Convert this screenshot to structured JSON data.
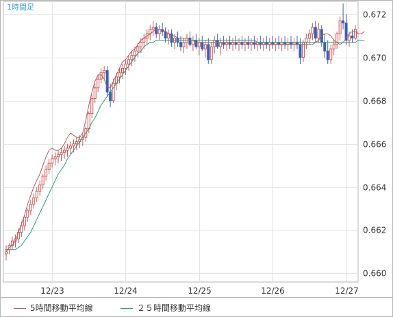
{
  "chart_data": {
    "type": "candlestick",
    "title": "1時間足",
    "xlabel": "",
    "ylabel": "",
    "ylim": [
      0.6596,
      0.6726
    ],
    "y_ticks": [
      "0.660",
      "0.662",
      "0.664",
      "0.666",
      "0.668",
      "0.670",
      "0.672"
    ],
    "x_ticks": [
      "12/23",
      "12/24",
      "12/25",
      "12/26",
      "12/27"
    ],
    "x_tick_index": [
      15,
      39,
      63,
      87,
      111
    ],
    "grid": true,
    "legend_placement": "bottom",
    "colors": {
      "up": "#cc5555",
      "down": "#3a5fb5",
      "ma5": "#b55a5a",
      "ma25": "#2a9a7a",
      "grid": "#e3e3e3",
      "frame": "#b5b5b5",
      "title": "#3aa0d8",
      "tick_text": "#333333"
    },
    "series": [
      {
        "name": "5時間移動平均線",
        "values": [
          0.661,
          0.6612,
          0.6613,
          0.6615,
          0.6619,
          0.6623,
          0.6627,
          0.6632,
          0.6636,
          0.664,
          0.6643,
          0.6646,
          0.665,
          0.6654,
          0.6657,
          0.6658,
          0.6657,
          0.6657,
          0.6658,
          0.666,
          0.6663,
          0.6665,
          0.6664,
          0.6663,
          0.6663,
          0.6665,
          0.6671,
          0.6678,
          0.6684,
          0.6689,
          0.6692,
          0.6692,
          0.669,
          0.6686,
          0.6686,
          0.6689,
          0.6692,
          0.6695,
          0.6698,
          0.6699,
          0.6701,
          0.6703,
          0.6704,
          0.6706,
          0.6708,
          0.6709,
          0.671,
          0.6711,
          0.6712,
          0.6713,
          0.6713,
          0.6713,
          0.6712,
          0.6711,
          0.671,
          0.671,
          0.6709,
          0.6709,
          0.6709,
          0.6709,
          0.6708,
          0.6708,
          0.6707,
          0.6707,
          0.6707,
          0.6707,
          0.6707,
          0.6707,
          0.6707,
          0.6707,
          0.6707,
          0.6707,
          0.6707,
          0.6707,
          0.6707,
          0.6707,
          0.6707,
          0.6707,
          0.6707,
          0.6707,
          0.6707,
          0.6707,
          0.6706,
          0.6706,
          0.6706,
          0.6706,
          0.6706,
          0.6706,
          0.6706,
          0.6706,
          0.6706,
          0.6706,
          0.6706,
          0.6706,
          0.6706,
          0.6706,
          0.6706,
          0.6706,
          0.6706,
          0.6706,
          0.6706,
          0.6707,
          0.6708,
          0.671,
          0.6711,
          0.6711,
          0.671,
          0.6708,
          0.6707,
          0.6706,
          0.6707,
          0.6709,
          0.6711,
          0.6712,
          0.6712,
          0.6711,
          0.6711,
          0.6712
        ]
      },
      {
        "name": "２５時間移動平均線",
        "values": [
          0.6611,
          0.6611,
          0.6611,
          0.6611,
          0.6612,
          0.6613,
          0.6615,
          0.6617,
          0.6619,
          0.6622,
          0.6625,
          0.6628,
          0.6631,
          0.6634,
          0.6637,
          0.664,
          0.6643,
          0.6646,
          0.6648,
          0.665,
          0.6653,
          0.6655,
          0.6657,
          0.6659,
          0.6661,
          0.6663,
          0.6665,
          0.6667,
          0.667,
          0.6672,
          0.6675,
          0.6678,
          0.668,
          0.6682,
          0.6684,
          0.6686,
          0.6688,
          0.669,
          0.6692,
          0.6694,
          0.6696,
          0.6698,
          0.67,
          0.6702,
          0.6703,
          0.6705,
          0.6706,
          0.6707,
          0.6707,
          0.6708,
          0.6708,
          0.6708,
          0.6708,
          0.6708,
          0.6708,
          0.6708,
          0.6708,
          0.6708,
          0.6708,
          0.6708,
          0.6708,
          0.6708,
          0.6708,
          0.6708,
          0.6708,
          0.6708,
          0.6708,
          0.6708,
          0.6708,
          0.6708,
          0.6708,
          0.6708,
          0.6708,
          0.6708,
          0.6708,
          0.6708,
          0.6708,
          0.6708,
          0.6708,
          0.6708,
          0.6708,
          0.6708,
          0.6707,
          0.6707,
          0.6707,
          0.6707,
          0.6707,
          0.6707,
          0.6707,
          0.6707,
          0.6707,
          0.6707,
          0.6707,
          0.6707,
          0.6707,
          0.6707,
          0.6707,
          0.6707,
          0.6707,
          0.6707,
          0.6707,
          0.6707,
          0.6707,
          0.6707,
          0.6707,
          0.6707,
          0.6707,
          0.6707,
          0.6707,
          0.6707,
          0.6707,
          0.6707,
          0.6707,
          0.6707,
          0.6707,
          0.6708,
          0.6708,
          0.6708
        ]
      }
    ],
    "ohlc": [
      [
        0.6609,
        0.6613,
        0.6606,
        0.6611
      ],
      [
        0.6611,
        0.6614,
        0.6609,
        0.6613
      ],
      [
        0.6613,
        0.6617,
        0.6611,
        0.6615
      ],
      [
        0.6615,
        0.6618,
        0.6612,
        0.6616
      ],
      [
        0.6616,
        0.6621,
        0.6614,
        0.6619
      ],
      [
        0.6619,
        0.6624,
        0.6617,
        0.6622
      ],
      [
        0.6622,
        0.6627,
        0.662,
        0.6626
      ],
      [
        0.6626,
        0.663,
        0.6624,
        0.6629
      ],
      [
        0.6629,
        0.6634,
        0.6627,
        0.6632
      ],
      [
        0.6632,
        0.6637,
        0.663,
        0.6635
      ],
      [
        0.6635,
        0.664,
        0.6633,
        0.6638
      ],
      [
        0.6638,
        0.6643,
        0.6636,
        0.6641
      ],
      [
        0.6641,
        0.6646,
        0.6639,
        0.6645
      ],
      [
        0.6645,
        0.665,
        0.6643,
        0.6648
      ],
      [
        0.6648,
        0.6653,
        0.6646,
        0.6651
      ],
      [
        0.6651,
        0.6655,
        0.6649,
        0.6653
      ],
      [
        0.6653,
        0.6656,
        0.665,
        0.6654
      ],
      [
        0.6654,
        0.6657,
        0.6651,
        0.6655
      ],
      [
        0.6655,
        0.6658,
        0.6652,
        0.6656
      ],
      [
        0.6656,
        0.6659,
        0.6653,
        0.6657
      ],
      [
        0.6657,
        0.666,
        0.6654,
        0.6658
      ],
      [
        0.6658,
        0.6661,
        0.6655,
        0.6659
      ],
      [
        0.6659,
        0.6662,
        0.6656,
        0.666
      ],
      [
        0.666,
        0.6663,
        0.6657,
        0.6661
      ],
      [
        0.6661,
        0.6664,
        0.6658,
        0.6662
      ],
      [
        0.6662,
        0.6665,
        0.6659,
        0.6663
      ],
      [
        0.6663,
        0.6668,
        0.6661,
        0.6667
      ],
      [
        0.6667,
        0.6675,
        0.6665,
        0.6674
      ],
      [
        0.6674,
        0.6683,
        0.6672,
        0.6681
      ],
      [
        0.6681,
        0.6688,
        0.6679,
        0.6686
      ],
      [
        0.6686,
        0.6692,
        0.6684,
        0.669
      ],
      [
        0.669,
        0.6695,
        0.6688,
        0.6693
      ],
      [
        0.6693,
        0.6696,
        0.669,
        0.6694
      ],
      [
        0.6694,
        0.6696,
        0.6682,
        0.6684
      ],
      [
        0.6684,
        0.6688,
        0.6677,
        0.668
      ],
      [
        0.668,
        0.669,
        0.6679,
        0.6688
      ],
      [
        0.6688,
        0.6693,
        0.6685,
        0.6691
      ],
      [
        0.6691,
        0.6695,
        0.6688,
        0.6693
      ],
      [
        0.6693,
        0.6697,
        0.669,
        0.6695
      ],
      [
        0.6695,
        0.6699,
        0.6692,
        0.6697
      ],
      [
        0.6697,
        0.6701,
        0.6694,
        0.6699
      ],
      [
        0.6699,
        0.6703,
        0.6696,
        0.6701
      ],
      [
        0.6701,
        0.6705,
        0.6698,
        0.6703
      ],
      [
        0.6703,
        0.6707,
        0.67,
        0.6705
      ],
      [
        0.6705,
        0.6709,
        0.6702,
        0.6707
      ],
      [
        0.6707,
        0.6711,
        0.6704,
        0.6709
      ],
      [
        0.6709,
        0.6713,
        0.6706,
        0.6711
      ],
      [
        0.6711,
        0.6715,
        0.6708,
        0.6713
      ],
      [
        0.6713,
        0.6717,
        0.671,
        0.6714
      ],
      [
        0.6714,
        0.6716,
        0.6709,
        0.6711
      ],
      [
        0.6711,
        0.6715,
        0.6708,
        0.6713
      ],
      [
        0.6713,
        0.6716,
        0.671,
        0.6712
      ],
      [
        0.6712,
        0.6714,
        0.6707,
        0.6709
      ],
      [
        0.6709,
        0.6713,
        0.6706,
        0.6711
      ],
      [
        0.6711,
        0.6713,
        0.6705,
        0.6707
      ],
      [
        0.6707,
        0.6711,
        0.6704,
        0.6709
      ],
      [
        0.6709,
        0.6712,
        0.6705,
        0.6707
      ],
      [
        0.6707,
        0.671,
        0.6703,
        0.6705
      ],
      [
        0.6705,
        0.6709,
        0.6702,
        0.6707
      ],
      [
        0.6707,
        0.6711,
        0.6704,
        0.6709
      ],
      [
        0.6709,
        0.6712,
        0.6705,
        0.6706
      ],
      [
        0.6706,
        0.671,
        0.6703,
        0.6708
      ],
      [
        0.6708,
        0.6711,
        0.6704,
        0.6705
      ],
      [
        0.6705,
        0.6709,
        0.6701,
        0.6707
      ],
      [
        0.6707,
        0.671,
        0.6703,
        0.6704
      ],
      [
        0.6704,
        0.6708,
        0.67,
        0.6706
      ],
      [
        0.6706,
        0.6709,
        0.6697,
        0.6699
      ],
      [
        0.6699,
        0.6707,
        0.6697,
        0.6705
      ],
      [
        0.6705,
        0.671,
        0.6702,
        0.6708
      ],
      [
        0.6708,
        0.6711,
        0.6704,
        0.6705
      ],
      [
        0.6705,
        0.6709,
        0.6701,
        0.6707
      ],
      [
        0.6707,
        0.671,
        0.6704,
        0.6706
      ],
      [
        0.6706,
        0.6709,
        0.6703,
        0.6707
      ],
      [
        0.6707,
        0.671,
        0.6704,
        0.6706
      ],
      [
        0.6706,
        0.6709,
        0.6703,
        0.6707
      ],
      [
        0.6707,
        0.671,
        0.6704,
        0.6706
      ],
      [
        0.6706,
        0.6709,
        0.6703,
        0.6707
      ],
      [
        0.6707,
        0.671,
        0.6704,
        0.6706
      ],
      [
        0.6706,
        0.6709,
        0.6703,
        0.6707
      ],
      [
        0.6707,
        0.671,
        0.6704,
        0.6706
      ],
      [
        0.6706,
        0.6709,
        0.6703,
        0.6707
      ],
      [
        0.6707,
        0.671,
        0.6704,
        0.6706
      ],
      [
        0.6706,
        0.6709,
        0.6703,
        0.6707
      ],
      [
        0.6707,
        0.671,
        0.6704,
        0.6706
      ],
      [
        0.6706,
        0.6709,
        0.6703,
        0.6707
      ],
      [
        0.6707,
        0.671,
        0.6704,
        0.6706
      ],
      [
        0.6706,
        0.6709,
        0.6703,
        0.6707
      ],
      [
        0.6707,
        0.671,
        0.6704,
        0.6706
      ],
      [
        0.6706,
        0.6709,
        0.6703,
        0.6707
      ],
      [
        0.6707,
        0.671,
        0.6704,
        0.6706
      ],
      [
        0.6706,
        0.6709,
        0.6703,
        0.6707
      ],
      [
        0.6707,
        0.671,
        0.6704,
        0.6706
      ],
      [
        0.6706,
        0.6709,
        0.6703,
        0.6707
      ],
      [
        0.6707,
        0.671,
        0.6704,
        0.6706
      ],
      [
        0.6706,
        0.6709,
        0.6703,
        0.6707
      ],
      [
        0.6707,
        0.671,
        0.6704,
        0.6706
      ],
      [
        0.6706,
        0.6709,
        0.6697,
        0.67
      ],
      [
        0.67,
        0.6708,
        0.6698,
        0.6707
      ],
      [
        0.6707,
        0.6711,
        0.6704,
        0.6709
      ],
      [
        0.6709,
        0.6713,
        0.6706,
        0.6711
      ],
      [
        0.6711,
        0.6716,
        0.6708,
        0.6714
      ],
      [
        0.6714,
        0.6717,
        0.6707,
        0.6709
      ],
      [
        0.6709,
        0.6716,
        0.6707,
        0.6713
      ],
      [
        0.6713,
        0.6715,
        0.6705,
        0.6707
      ],
      [
        0.6707,
        0.6711,
        0.67,
        0.6703
      ],
      [
        0.6703,
        0.6708,
        0.6697,
        0.6699
      ],
      [
        0.6699,
        0.6706,
        0.6697,
        0.6704
      ],
      [
        0.6704,
        0.6708,
        0.6701,
        0.6706
      ],
      [
        0.6706,
        0.6712,
        0.6704,
        0.6711
      ],
      [
        0.6711,
        0.6719,
        0.6708,
        0.6717
      ],
      [
        0.6717,
        0.6725,
        0.6713,
        0.6716
      ],
      [
        0.6716,
        0.672,
        0.6706,
        0.6708
      ],
      [
        0.6708,
        0.6712,
        0.6705,
        0.671
      ],
      [
        0.671,
        0.6713,
        0.6707,
        0.6709
      ],
      [
        0.6709,
        0.6715,
        0.6708,
        0.6713
      ]
    ]
  }
}
